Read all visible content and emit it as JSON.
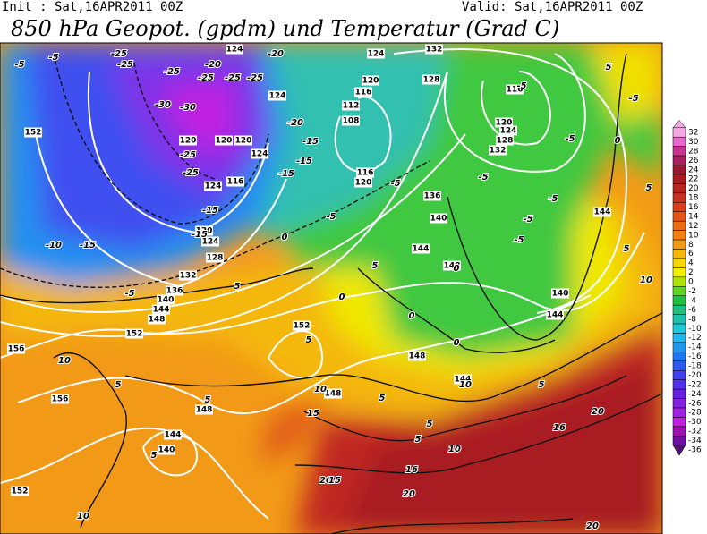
{
  "header": {
    "init": "Init : Sat,16APR2011 00Z",
    "valid": "Valid: Sat,16APR2011 00Z",
    "title": "850 hPa Geopot. (gpdm) und Temperatur (Grad C)"
  },
  "colorbar": {
    "levels": [
      32,
      30,
      28,
      26,
      24,
      22,
      20,
      18,
      16,
      14,
      12,
      10,
      8,
      6,
      4,
      2,
      0,
      -2,
      -4,
      -6,
      -8,
      -10,
      -12,
      -14,
      -16,
      -18,
      -20,
      -22,
      -24,
      -26,
      -28,
      -30,
      -32,
      -34,
      -36
    ],
    "colors": [
      "#f4a8e4",
      "#e868cc",
      "#c83490",
      "#a82060",
      "#981830",
      "#a81c20",
      "#b82420",
      "#c83020",
      "#d84018",
      "#e45418",
      "#ec6a14",
      "#f08010",
      "#f49a10",
      "#f8b808",
      "#f8d800",
      "#f0f000",
      "#b0e400",
      "#60d420",
      "#20c040",
      "#20c080",
      "#20c0b0",
      "#20c8d8",
      "#20b8f0",
      "#2098f0",
      "#2078f0",
      "#3058f0",
      "#4040f0",
      "#5030e8",
      "#6820e0",
      "#8420e0",
      "#a020e0",
      "#c020e0",
      "#a010b0",
      "#7010a0",
      "#501070"
    ]
  },
  "map": {
    "geopotential_labels": [
      152,
      124,
      124,
      120,
      120,
      120,
      124,
      116,
      124,
      120,
      124,
      128,
      132,
      136,
      140,
      144,
      148,
      152,
      156,
      156,
      152,
      144,
      140,
      148,
      152,
      148,
      148,
      144,
      144,
      140,
      148,
      144,
      140,
      136,
      116,
      112,
      108,
      120,
      128,
      116,
      120,
      124,
      128,
      132,
      144,
      120,
      116,
      124,
      132
    ],
    "temperature_labels": [
      -5,
      -5,
      -25,
      -25,
      -20,
      -25,
      -20,
      -25,
      -25,
      -25,
      -30,
      -30,
      -25,
      -25,
      -20,
      -15,
      -15,
      -15,
      -15,
      -15,
      -10,
      -15,
      -5,
      5,
      0,
      -5,
      5,
      10,
      5,
      5,
      10,
      15,
      5,
      10,
      20,
      15,
      20,
      16,
      10,
      5,
      5,
      10,
      5,
      0,
      0,
      0,
      -5,
      -5,
      -5,
      -5,
      -5,
      -5,
      0,
      -5,
      5,
      5,
      5,
      10,
      20,
      16,
      20,
      5,
      0,
      5,
      -5
    ]
  }
}
